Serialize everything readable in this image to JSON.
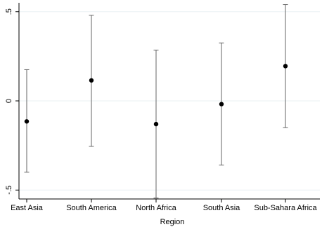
{
  "chart_data": {
    "type": "scatter",
    "subtype": "point-with-error-bars",
    "title": "",
    "xlabel": "Region",
    "ylabel": "",
    "categories": [
      "East Asia",
      "South America",
      "North Africa",
      "South Asia",
      "Sub-Sahara Africa"
    ],
    "estimates": [
      -0.115,
      0.115,
      -0.13,
      -0.018,
      0.195
    ],
    "ci_lower": [
      -0.4,
      -0.255,
      -0.545,
      -0.36,
      -0.15
    ],
    "ci_upper": [
      0.175,
      0.48,
      0.285,
      0.325,
      0.54
    ],
    "ylim": [
      -0.55,
      0.55
    ],
    "yticks": [
      {
        "value": -0.5,
        "label": "-.5"
      },
      {
        "value": 0,
        "label": "0"
      },
      {
        "value": 0.5,
        "label": ".5"
      }
    ],
    "grid": true,
    "legend": "none",
    "colors": {
      "marker": "#000000",
      "error_bar": "#666666",
      "grid": "#eaf0f3",
      "axis": "#000000"
    }
  }
}
